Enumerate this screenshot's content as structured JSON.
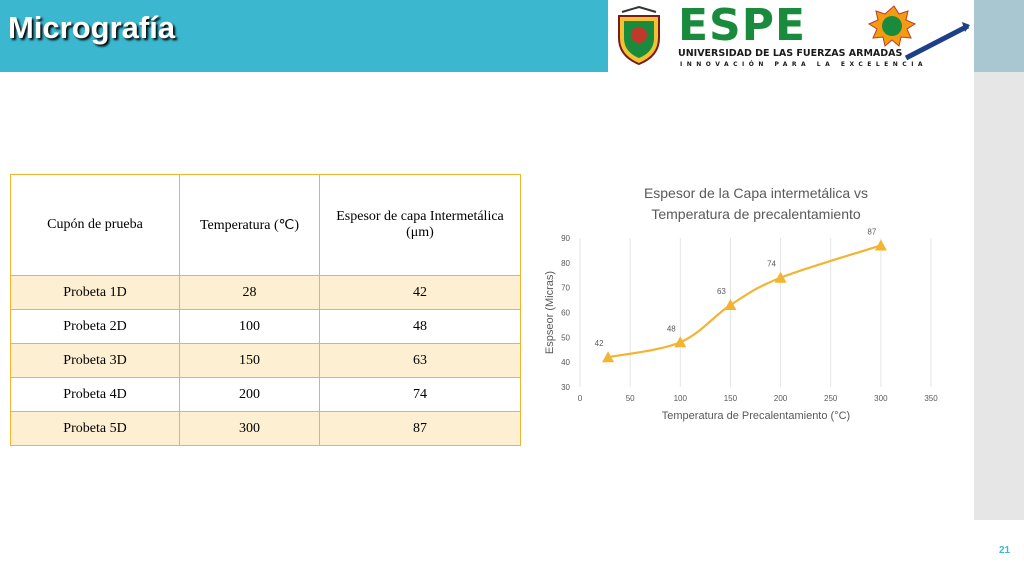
{
  "slide": {
    "title": "Micrografía",
    "page_number": "21"
  },
  "logo": {
    "name": "ESPE",
    "university": "UNIVERSIDAD DE LAS FUERZAS ARMADAS",
    "tagline": "INNOVACIÓN PARA LA EXCELENCIA",
    "crest_caption": "ECUADOR",
    "dept_badge": "ESPE",
    "dept_letters": "D E C E M"
  },
  "table": {
    "headers": [
      "Cupón de prueba",
      "Temperatura (℃)",
      "Espesor de capa Intermetálica (μm)"
    ],
    "rows": [
      [
        "Probeta 1D",
        "28",
        "42"
      ],
      [
        "Probeta 2D",
        "100",
        "48"
      ],
      [
        "Probeta 3D",
        "150",
        "63"
      ],
      [
        "Probeta 4D",
        "200",
        "74"
      ],
      [
        "Probeta 5D",
        "300",
        "87"
      ]
    ]
  },
  "chart_data": {
    "type": "line",
    "title": "Espesor de la Capa intermetálica vs Temperatura de precalentamiento",
    "xlabel": "Temperatura de Precalentamiento (°C)",
    "ylabel": "Espseor (Micras)",
    "x": [
      28,
      100,
      150,
      200,
      300
    ],
    "y": [
      42,
      48,
      63,
      74,
      87
    ],
    "data_labels": [
      "42",
      "48",
      "63",
      "74",
      "87"
    ],
    "xlim": [
      0,
      350
    ],
    "ylim": [
      30,
      90
    ],
    "xticks": [
      0,
      50,
      100,
      150,
      200,
      250,
      300,
      350
    ],
    "yticks": [
      30,
      40,
      50,
      60,
      70,
      80,
      90
    ],
    "grid": "vertical",
    "legend": "none",
    "marker": "triangle",
    "line_color": "#f2b431"
  }
}
